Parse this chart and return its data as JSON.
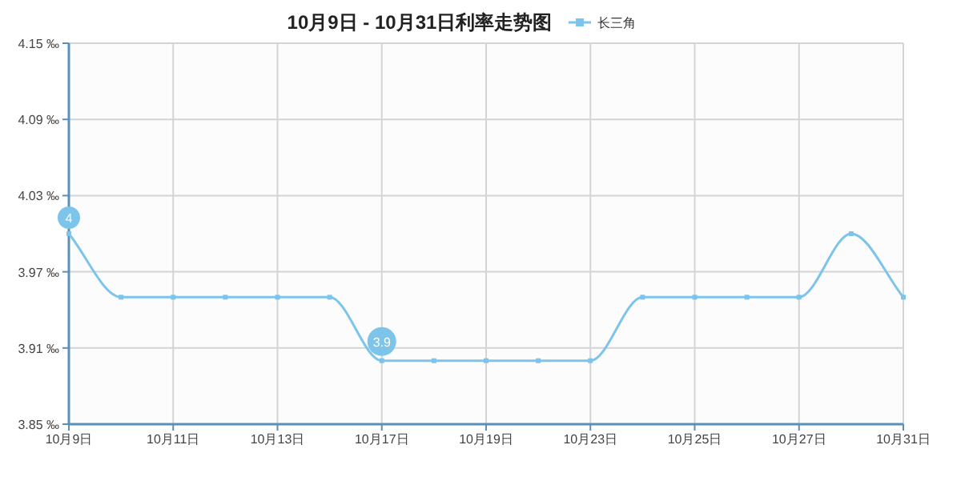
{
  "chart_data": {
    "type": "line",
    "title": "10月9日 - 10月31日利率走势图",
    "categories": [
      "10月9日",
      null,
      "10月11日",
      null,
      "10月13日",
      null,
      "10月17日",
      null,
      "10月19日",
      null,
      "10月23日",
      null,
      "10月25日",
      null,
      "10月27日",
      null,
      "10月31日"
    ],
    "series": [
      {
        "name": "长三角",
        "color": "#7cc4ea",
        "values": [
          4,
          3.95,
          3.95,
          3.95,
          3.95,
          3.95,
          3.9,
          3.9,
          3.9,
          3.9,
          3.9,
          3.95,
          3.95,
          3.95,
          3.95,
          4,
          3.95
        ],
        "value_labels": [
          "4",
          null,
          null,
          null,
          null,
          null,
          "3.9",
          null,
          null,
          null,
          null,
          null,
          null,
          null,
          null,
          null,
          null
        ]
      }
    ],
    "ylim": [
      3.85,
      4.15
    ],
    "yticks": [
      {
        "value": 3.85,
        "label": "3.85 ‰"
      },
      {
        "value": 3.91,
        "label": "3.91 ‰"
      },
      {
        "value": 3.97,
        "label": "3.97 ‰"
      },
      {
        "value": 4.03,
        "label": "4.03 ‰"
      },
      {
        "value": 4.09,
        "label": "4.09 ‰"
      },
      {
        "value": 4.15,
        "label": "4.15 ‰"
      }
    ],
    "grid": true,
    "legend": "top",
    "marker": "square",
    "line_style": "solid"
  }
}
